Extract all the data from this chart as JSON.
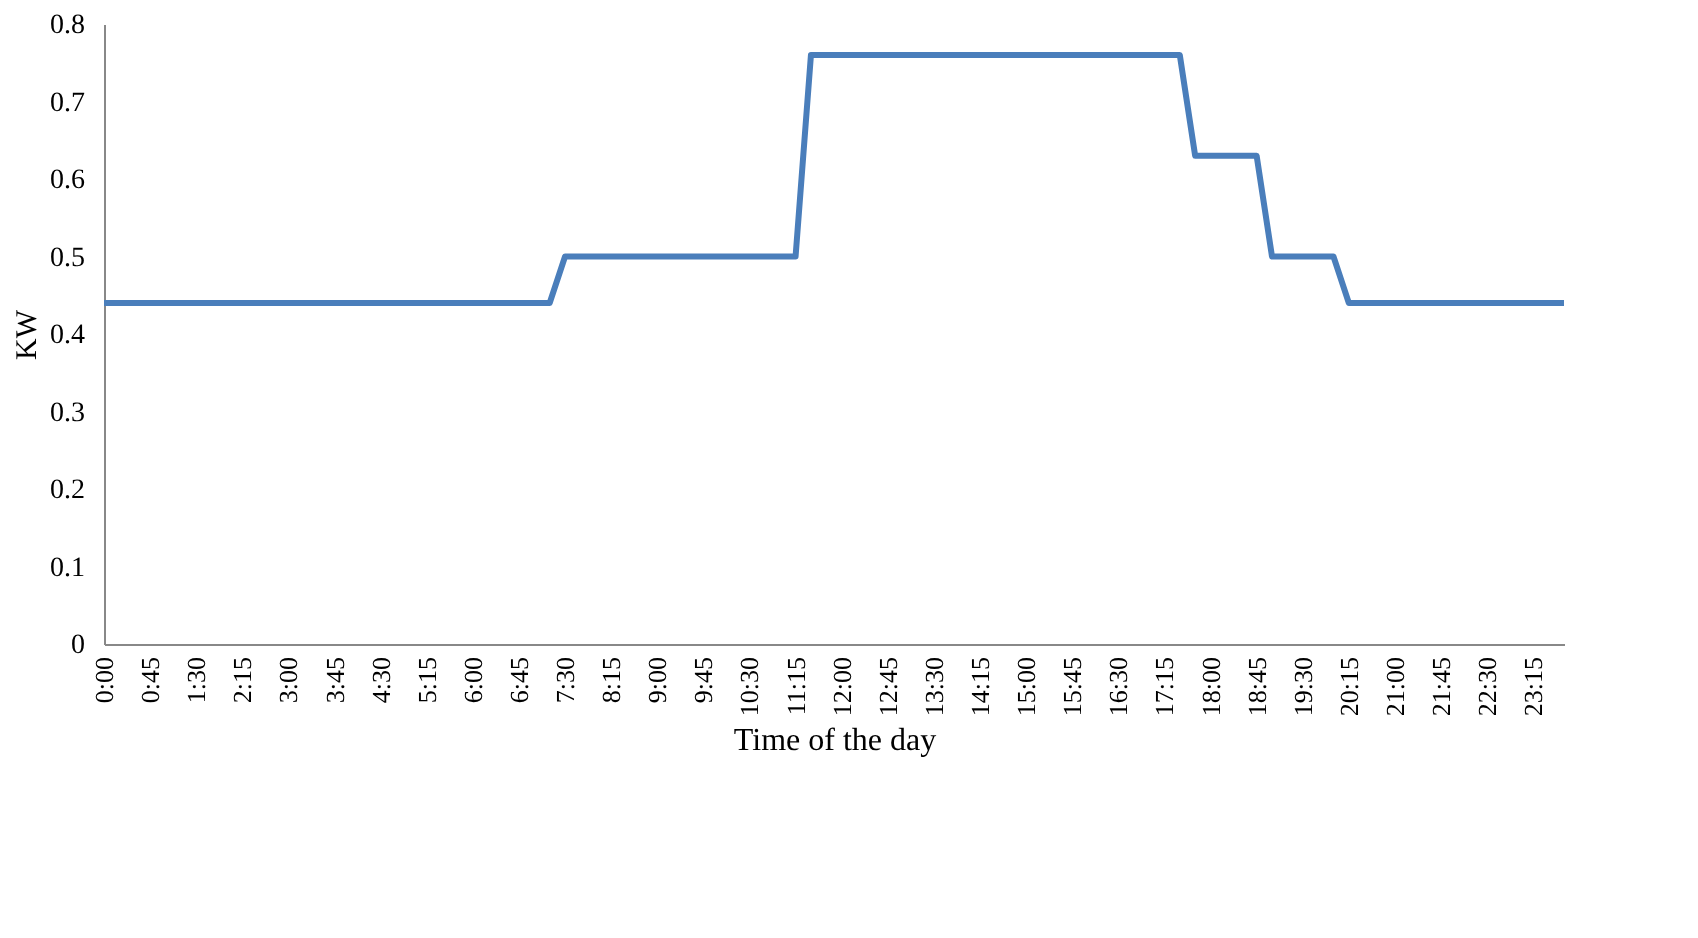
{
  "chart_data": {
    "type": "line",
    "xlabel": "Time of the day",
    "ylabel": "KW",
    "x": [
      0,
      7.25,
      7.5,
      11.25,
      11.5,
      17.5,
      17.75,
      18.75,
      19,
      20,
      20.25,
      23.75
    ],
    "series": [
      {
        "color": "#4a7ebb",
        "values": [
          0.44,
          0.44,
          0.5,
          0.5,
          0.76,
          0.76,
          0.63,
          0.63,
          0.5,
          0.5,
          0.44,
          0.44
        ]
      }
    ],
    "xlim": [
      0,
      23.75
    ],
    "xticks": [
      {
        "value": 0,
        "label": "0:00"
      },
      {
        "value": 0.75,
        "label": "0:45"
      },
      {
        "value": 1.5,
        "label": "1:30"
      },
      {
        "value": 2.25,
        "label": "2:15"
      },
      {
        "value": 3,
        "label": "3:00"
      },
      {
        "value": 3.75,
        "label": "3:45"
      },
      {
        "value": 4.5,
        "label": "4:30"
      },
      {
        "value": 5.25,
        "label": "5:15"
      },
      {
        "value": 6,
        "label": "6:00"
      },
      {
        "value": 6.75,
        "label": "6:45"
      },
      {
        "value": 7.5,
        "label": "7:30"
      },
      {
        "value": 8.25,
        "label": "8:15"
      },
      {
        "value": 9,
        "label": "9:00"
      },
      {
        "value": 9.75,
        "label": "9:45"
      },
      {
        "value": 10.5,
        "label": "10:30"
      },
      {
        "value": 11.25,
        "label": "11:15"
      },
      {
        "value": 12,
        "label": "12:00"
      },
      {
        "value": 12.75,
        "label": "12:45"
      },
      {
        "value": 13.5,
        "label": "13:30"
      },
      {
        "value": 14.25,
        "label": "14:15"
      },
      {
        "value": 15,
        "label": "15:00"
      },
      {
        "value": 15.75,
        "label": "15:45"
      },
      {
        "value": 16.5,
        "label": "16:30"
      },
      {
        "value": 17.25,
        "label": "17:15"
      },
      {
        "value": 18,
        "label": "18:00"
      },
      {
        "value": 18.75,
        "label": "18:45"
      },
      {
        "value": 19.5,
        "label": "19:30"
      },
      {
        "value": 20.25,
        "label": "20:15"
      },
      {
        "value": 21,
        "label": "21:00"
      },
      {
        "value": 21.75,
        "label": "21:45"
      },
      {
        "value": 22.5,
        "label": "22:30"
      },
      {
        "value": 23.25,
        "label": "23:15"
      }
    ],
    "ylim": [
      0,
      0.8
    ],
    "yticks": [
      0,
      0.1,
      0.2,
      0.3,
      0.4,
      0.5,
      0.6,
      0.7,
      0.8
    ],
    "grid": false,
    "marker": "none",
    "line_style": "solid"
  }
}
